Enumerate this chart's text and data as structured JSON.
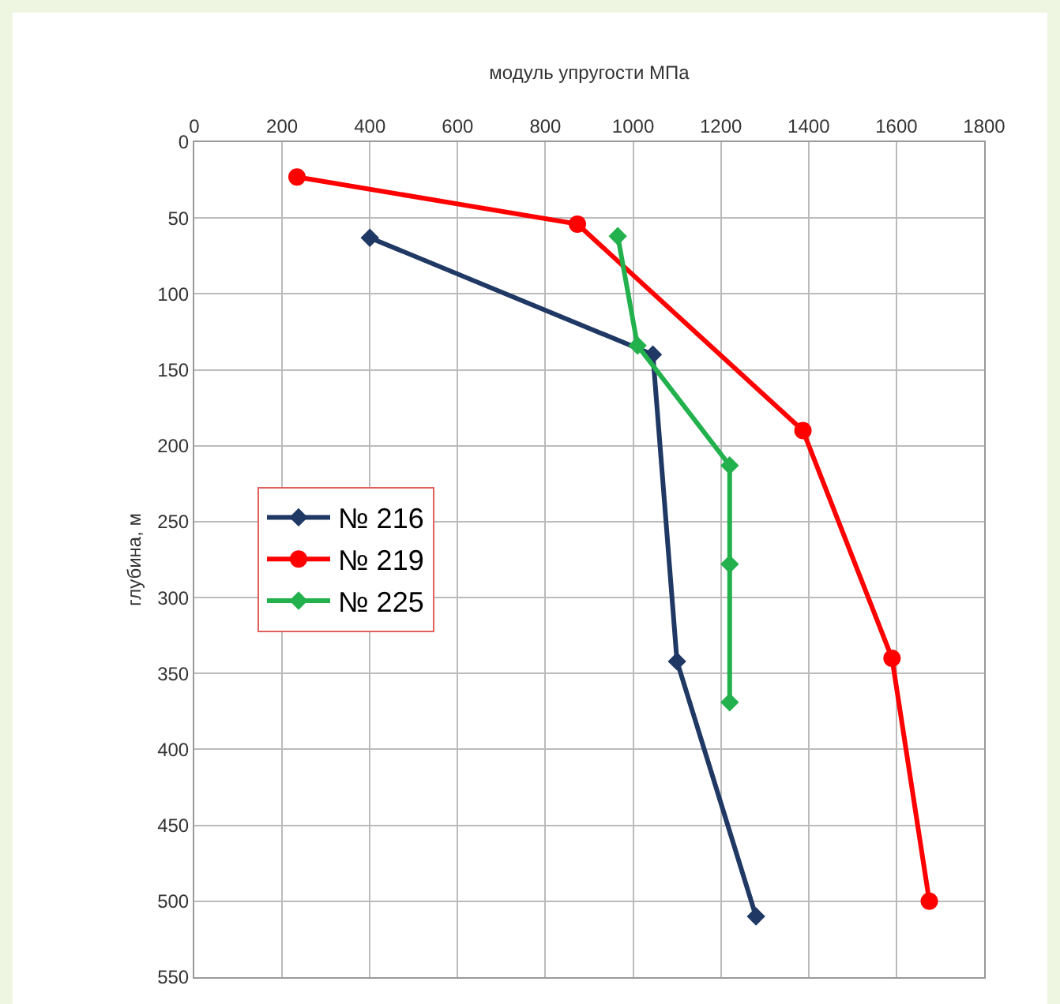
{
  "chart_data": {
    "type": "line",
    "xlabel": "модуль упругости МПа",
    "ylabel": "глубина, м",
    "xlim": [
      0,
      1800
    ],
    "xticks": [
      0,
      200,
      400,
      600,
      800,
      1000,
      1200,
      1400,
      1600,
      1800
    ],
    "ylim": [
      550,
      0
    ],
    "yticks": [
      0,
      50,
      100,
      150,
      200,
      250,
      300,
      350,
      400,
      450,
      500,
      550
    ],
    "grid": true,
    "legend": "left",
    "line_style": "solid",
    "series": [
      {
        "name": "№ 216",
        "color": "#203864",
        "marker": "diamond",
        "x": [
          400,
          1045,
          1100,
          1280
        ],
        "values": [
          63,
          140,
          342,
          510
        ]
      },
      {
        "name": "№ 219",
        "color": "#ff0000",
        "marker": "circle",
        "x": [
          234,
          873,
          1387,
          1590,
          1675
        ],
        "values": [
          23,
          54,
          190,
          340,
          500
        ]
      },
      {
        "name": "№ 225",
        "color": "#22b14c",
        "marker": "diamond",
        "x": [
          965,
          1010,
          1220,
          1220,
          1220
        ],
        "values": [
          62,
          134,
          213,
          278,
          369
        ]
      }
    ]
  }
}
